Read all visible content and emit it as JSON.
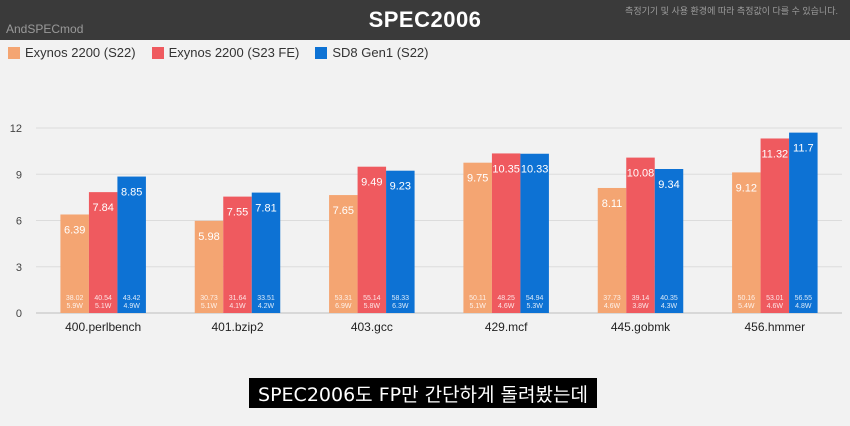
{
  "header": {
    "title": "SPEC2006",
    "watermark": "AndSPECmod",
    "notice": "측정기기 및 사용 환경에 따라 측정값이 다를 수 있습니다."
  },
  "subtitle_caption": "SPEC2006도 FP만 간단하게 돌려봤는데",
  "colors": {
    "exynos_s22": "#f4a572",
    "exynos_s23fe": "#ef5a5f",
    "sd8gen1": "#0d72d4"
  },
  "chart_data": {
    "type": "bar",
    "title": "SPEC2006",
    "categories": [
      "400.perlbench",
      "401.bzip2",
      "403.gcc",
      "429.mcf",
      "445.gobmk",
      "456.hmmer"
    ],
    "ylim": [
      0,
      12
    ],
    "yticks": [
      0,
      3,
      6,
      9,
      12
    ],
    "grid": true,
    "legend_position": "top-left",
    "series": [
      {
        "name": "Exynos 2200 (S22)",
        "color": "#f4a572",
        "values": [
          6.39,
          5.98,
          7.65,
          9.75,
          8.11,
          9.12
        ],
        "sub_labels": [
          "38.02",
          "30.73",
          "53.31",
          "50.11",
          "37.73",
          "50.16"
        ],
        "power": [
          "5.9W",
          "5.1W",
          "6.9W",
          "5.1W",
          "4.6W",
          "5.4W"
        ]
      },
      {
        "name": "Exynos 2200 (S23 FE)",
        "color": "#ef5a5f",
        "values": [
          7.84,
          7.55,
          9.49,
          10.35,
          10.08,
          11.32
        ],
        "sub_labels": [
          "40.54",
          "31.64",
          "55.14",
          "48.25",
          "39.14",
          "53.01"
        ],
        "power": [
          "5.1W",
          "4.1W",
          "5.8W",
          "4.6W",
          "3.8W",
          "4.6W"
        ]
      },
      {
        "name": "SD8 Gen1 (S22)",
        "color": "#0d72d4",
        "values": [
          8.85,
          7.81,
          9.23,
          10.33,
          9.34,
          11.7
        ],
        "sub_labels": [
          "43.42",
          "33.51",
          "58.33",
          "54.94",
          "40.35",
          "56.55"
        ],
        "power": [
          "4.9W",
          "4.2W",
          "6.3W",
          "5.3W",
          "4.3W",
          "4.8W"
        ]
      }
    ]
  }
}
